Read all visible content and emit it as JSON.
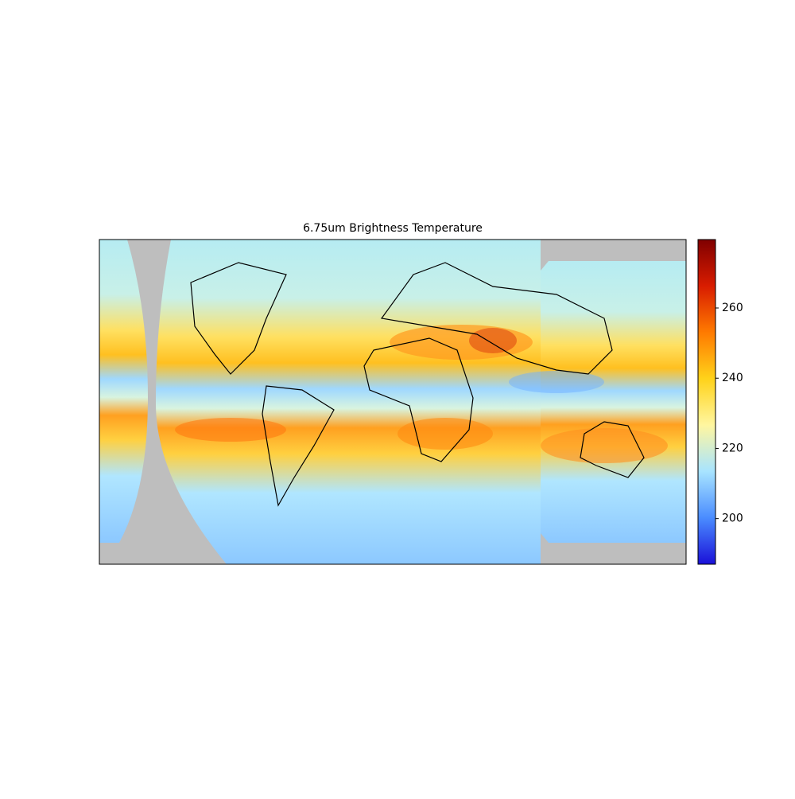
{
  "title": "6.75um Brightness Temperature",
  "colorbar": {
    "lim": [
      187,
      279.5
    ],
    "ticks": [
      200,
      220,
      240,
      260
    ],
    "colormap": [
      "#800000",
      "#d81c00",
      "#ff7a00",
      "#ffd21a",
      "#fff6a0",
      "#a8e4ff",
      "#4a8cff",
      "#1a10d8"
    ]
  }
}
